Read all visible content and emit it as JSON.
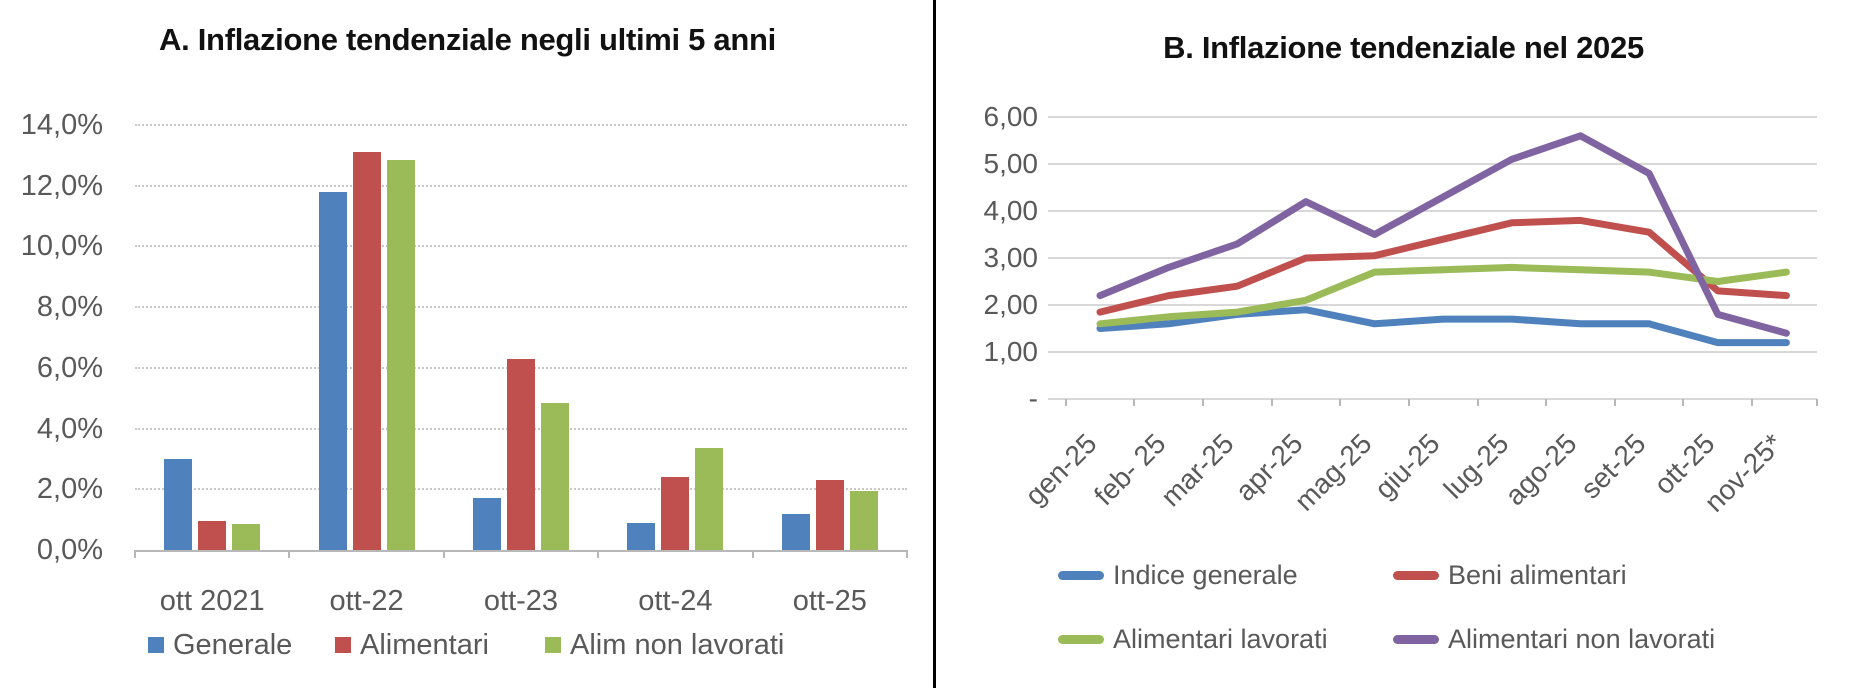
{
  "colors": {
    "axis_text": "#595959",
    "gridline": "#d8d8d8",
    "axis_line": "#b8b8b8",
    "divider": "#000000",
    "background": "#ffffff"
  },
  "chart_data": [
    {
      "type": "bar",
      "panel": "A",
      "title": "A. Inflazione tendenziale negli ultimi 5 anni",
      "categories": [
        "ott 2021",
        "ott-22",
        "ott-23",
        "ott-24",
        "ott-25"
      ],
      "series": [
        {
          "name": "Generale",
          "color": "#4F81BD",
          "values": [
            3.0,
            11.8,
            1.7,
            0.9,
            1.2
          ]
        },
        {
          "name": "Alimentari",
          "color": "#C0504D",
          "values": [
            0.95,
            13.1,
            6.3,
            2.4,
            2.3
          ]
        },
        {
          "name": "Alim non lavorati",
          "color": "#9BBB59",
          "values": [
            0.85,
            12.85,
            4.85,
            3.35,
            1.95
          ]
        }
      ],
      "ylim": [
        0,
        14
      ],
      "y_ticks": [
        {
          "value": 14,
          "label": "14,0%"
        },
        {
          "value": 12,
          "label": "12,0%"
        },
        {
          "value": 10,
          "label": "10,0%"
        },
        {
          "value": 8,
          "label": "8,0%"
        },
        {
          "value": 6,
          "label": "6,0%"
        },
        {
          "value": 4,
          "label": "4,0%"
        },
        {
          "value": 2,
          "label": "2,0%"
        },
        {
          "value": 0,
          "label": "0,0%"
        }
      ],
      "grid": "dotted",
      "legend_position": "bottom"
    },
    {
      "type": "line",
      "panel": "B",
      "title": "B. Inflazione tendenziale nel 2025",
      "categories": [
        "gen-25",
        "feb- 25",
        "mar-25",
        "apr-25",
        "mag-25",
        "giu-25",
        "lug-25",
        "ago-25",
        "set-25",
        "ott-25",
        "nov-25*"
      ],
      "series": [
        {
          "name": "Indice generale",
          "color": "#4F81BD",
          "values": [
            1.5,
            1.6,
            1.8,
            1.9,
            1.6,
            1.7,
            1.7,
            1.6,
            1.6,
            1.2,
            1.2
          ]
        },
        {
          "name": "Beni alimentari",
          "color": "#C0504D",
          "values": [
            1.85,
            2.2,
            2.4,
            3.0,
            3.05,
            3.4,
            3.75,
            3.8,
            3.55,
            2.3,
            2.2
          ]
        },
        {
          "name": "Alimentari lavorati",
          "color": "#9BBB59",
          "values": [
            1.6,
            1.75,
            1.85,
            2.1,
            2.7,
            2.75,
            2.8,
            2.75,
            2.7,
            2.5,
            2.7
          ]
        },
        {
          "name": "Alimentari non lavorati",
          "color": "#8064A2",
          "values": [
            2.2,
            2.8,
            3.3,
            4.2,
            3.5,
            4.3,
            5.1,
            5.6,
            4.8,
            1.8,
            1.4
          ]
        }
      ],
      "ylim": [
        0,
        6
      ],
      "y_ticks": [
        {
          "value": 6,
          "label": "6,00"
        },
        {
          "value": 5,
          "label": "5,00"
        },
        {
          "value": 4,
          "label": "4,00"
        },
        {
          "value": 3,
          "label": "3,00"
        },
        {
          "value": 2,
          "label": "2,00"
        },
        {
          "value": 1,
          "label": "1,00"
        },
        {
          "value": 0,
          "label": "-"
        }
      ],
      "grid": "solid",
      "legend_position": "bottom-2col",
      "legend_rows": [
        [
          "Indice generale",
          "Beni alimentari"
        ],
        [
          "Alimentari lavorati",
          "Alimentari non lavorati"
        ]
      ]
    }
  ]
}
